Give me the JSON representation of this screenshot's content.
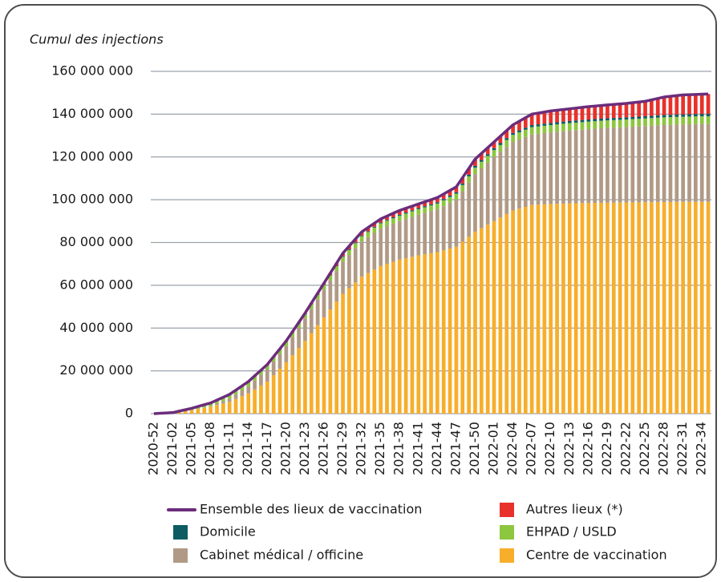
{
  "chart_data": {
    "type": "bar",
    "stacked": true,
    "title": "Cumul des injections",
    "categories": [
      "2020-52",
      null,
      null,
      "2021-02",
      null,
      null,
      "2021-05",
      null,
      null,
      "2021-08",
      null,
      null,
      "2021-11",
      null,
      null,
      "2021-14",
      null,
      null,
      "2021-17",
      null,
      null,
      "2021-20",
      null,
      null,
      "2021-23",
      null,
      null,
      "2021-26",
      null,
      null,
      "2021-29",
      null,
      null,
      "2021-32",
      null,
      null,
      "2021-35",
      null,
      null,
      "2021-38",
      null,
      null,
      "2021-41",
      null,
      null,
      "2021-44",
      null,
      null,
      "2021-47",
      null,
      null,
      "2021-50",
      null,
      null,
      "2022-01",
      null,
      null,
      "2022-04",
      null,
      null,
      "2022-07",
      null,
      null,
      "2022-10",
      null,
      null,
      "2022-13",
      null,
      null,
      "2022-16",
      null,
      null,
      "2022-19",
      null,
      null,
      "2022-22",
      null,
      null,
      "2022-25",
      null,
      null,
      "2022-28",
      null,
      null,
      "2022-31",
      null,
      null,
      "2022-34",
      null
    ],
    "series": [
      {
        "name": "Centre de vaccination",
        "color": "#f7ae2b",
        "type": "bar",
        "values": [
          0,
          100000,
          200000,
          300000,
          730000,
          1170000,
          1600000,
          2170000,
          2730000,
          3300000,
          4030000,
          4770000,
          5500000,
          6830000,
          8170000,
          9500000,
          11330000,
          13170000,
          15000000,
          18000000,
          21000000,
          24000000,
          27330000,
          30670000,
          34000000,
          37670000,
          41330000,
          45000000,
          48670000,
          52330000,
          56000000,
          58670000,
          61330000,
          64000000,
          65670000,
          67330000,
          69000000,
          70000000,
          71000000,
          72000000,
          72670000,
          73330000,
          74000000,
          74500000,
          75000000,
          75500000,
          76330000,
          77170000,
          78000000,
          80330000,
          82670000,
          85000000,
          86670000,
          88330000,
          90000000,
          91670000,
          93330000,
          95000000,
          95830000,
          96670000,
          97500000,
          97670000,
          97830000,
          98000000,
          98100000,
          98200000,
          98300000,
          98370000,
          98430000,
          98500000,
          98530000,
          98570000,
          98600000,
          98630000,
          98670000,
          98700000,
          98730000,
          98770000,
          98800000,
          98830000,
          98870000,
          98900000,
          98930000,
          98970000,
          99000000,
          99000000,
          99000000,
          99000000,
          99000000
        ]
      },
      {
        "name": "Cabinet médical / officine",
        "color": "#b09a86",
        "type": "bar",
        "values": [
          0,
          0,
          0,
          0,
          0,
          0,
          0,
          70000,
          130000,
          200000,
          630000,
          1070000,
          1500000,
          2100000,
          2700000,
          3300000,
          4130000,
          4970000,
          5800000,
          6370000,
          6930000,
          7500000,
          8500000,
          9500000,
          10500000,
          11330000,
          12170000,
          13000000,
          13670000,
          14330000,
          15000000,
          15500000,
          16000000,
          16500000,
          16830000,
          17170000,
          17500000,
          17670000,
          17830000,
          18000000,
          18330000,
          18670000,
          19000000,
          19330000,
          19670000,
          20000000,
          20670000,
          21330000,
          22000000,
          23670000,
          25330000,
          27000000,
          28000000,
          29000000,
          30000000,
          30670000,
          31330000,
          32000000,
          32330000,
          32670000,
          33000000,
          33170000,
          33330000,
          33500000,
          33670000,
          33830000,
          34000000,
          34170000,
          34330000,
          34500000,
          34670000,
          34830000,
          35000000,
          35100000,
          35200000,
          35300000,
          35400000,
          35500000,
          35600000,
          35730000,
          35870000,
          36000000,
          36070000,
          36130000,
          36200000,
          36270000,
          36330000,
          36400000,
          36400000
        ]
      },
      {
        "name": "EHPAD / USLD",
        "color": "#8dc63f",
        "type": "bar",
        "values": [
          0,
          70000,
          130000,
          200000,
          400000,
          600000,
          800000,
          970000,
          1130000,
          1300000,
          1400000,
          1500000,
          1600000,
          1670000,
          1730000,
          1800000,
          1800000,
          1800000,
          1800000,
          1870000,
          1930000,
          2000000,
          2000000,
          2000000,
          2000000,
          2070000,
          2130000,
          2200000,
          2230000,
          2270000,
          2300000,
          2330000,
          2370000,
          2400000,
          2430000,
          2470000,
          2500000,
          2500000,
          2500000,
          2500000,
          2530000,
          2570000,
          2600000,
          2630000,
          2670000,
          2700000,
          2730000,
          2770000,
          2800000,
          2870000,
          2930000,
          3000000,
          3070000,
          3130000,
          3200000,
          3230000,
          3270000,
          3300000,
          3330000,
          3370000,
          3400000,
          3400000,
          3400000,
          3400000,
          3430000,
          3470000,
          3500000,
          3500000,
          3500000,
          3500000,
          3500000,
          3500000,
          3500000,
          3500000,
          3500000,
          3500000,
          3530000,
          3570000,
          3600000,
          3600000,
          3600000,
          3600000,
          3600000,
          3600000,
          3600000,
          3600000,
          3600000,
          3600000,
          3600000
        ]
      },
      {
        "name": "Domicile",
        "color": "#0d5c63",
        "type": "bar",
        "values": [
          0,
          0,
          0,
          0,
          0,
          0,
          0,
          0,
          0,
          0,
          30000,
          70000,
          100000,
          100000,
          100000,
          100000,
          100000,
          100000,
          100000,
          100000,
          100000,
          100000,
          130000,
          170000,
          200000,
          200000,
          200000,
          200000,
          230000,
          270000,
          300000,
          330000,
          370000,
          400000,
          400000,
          400000,
          400000,
          430000,
          470000,
          500000,
          500000,
          500000,
          500000,
          530000,
          570000,
          600000,
          630000,
          670000,
          700000,
          730000,
          770000,
          800000,
          830000,
          870000,
          900000,
          900000,
          900000,
          900000,
          930000,
          970000,
          1000000,
          1000000,
          1000000,
          1000000,
          1000000,
          1000000,
          1000000,
          1000000,
          1000000,
          1000000,
          1000000,
          1000000,
          1000000,
          1000000,
          1000000,
          1000000,
          1000000,
          1000000,
          1000000,
          1030000,
          1070000,
          1100000,
          1100000,
          1100000,
          1100000,
          1100000,
          1100000,
          1100000,
          1100000
        ]
      },
      {
        "name": "Autres lieux (*)",
        "color": "#e8312b",
        "type": "bar",
        "values": [
          0,
          0,
          0,
          0,
          30000,
          70000,
          100000,
          130000,
          170000,
          200000,
          230000,
          270000,
          300000,
          300000,
          300000,
          300000,
          300000,
          300000,
          300000,
          330000,
          370000,
          400000,
          370000,
          330000,
          300000,
          400000,
          500000,
          600000,
          870000,
          1130000,
          1400000,
          1500000,
          1600000,
          1700000,
          1670000,
          1630000,
          1600000,
          1730000,
          1870000,
          2000000,
          1970000,
          1930000,
          1900000,
          2000000,
          2100000,
          2200000,
          2300000,
          2400000,
          2500000,
          2730000,
          2970000,
          3200000,
          3100000,
          3000000,
          2900000,
          3200000,
          3500000,
          3800000,
          4230000,
          4670000,
          5100000,
          5270000,
          5430000,
          5600000,
          5630000,
          5670000,
          5700000,
          5800000,
          5900000,
          6000000,
          6070000,
          6130000,
          6200000,
          6300000,
          6400000,
          6500000,
          6670000,
          6830000,
          7000000,
          7470000,
          7930000,
          8400000,
          8630000,
          8870000,
          9100000,
          9130000,
          9170000,
          9200000,
          9300000
        ]
      },
      {
        "name": "Ensemble des lieux de vaccination",
        "color": "#6b2d7b",
        "type": "line",
        "values": [
          0,
          170000,
          330000,
          500000,
          1170000,
          1830000,
          2500000,
          3330000,
          4170000,
          5000000,
          6330000,
          7670000,
          9000000,
          11000000,
          13000000,
          15000000,
          17670000,
          20330000,
          23000000,
          26670000,
          30330000,
          34000000,
          38330000,
          42670000,
          47000000,
          51670000,
          56330000,
          61000000,
          65670000,
          70330000,
          75000000,
          78330000,
          81670000,
          85000000,
          87000000,
          89000000,
          91000000,
          92330000,
          93670000,
          95000000,
          96000000,
          97000000,
          98000000,
          99000000,
          100000000,
          101000000,
          102670000,
          104330000,
          106000000,
          110330000,
          114670000,
          119000000,
          121670000,
          124330000,
          127000000,
          129670000,
          132330000,
          135000000,
          136670000,
          138330000,
          140000000,
          140500000,
          141000000,
          141500000,
          141830000,
          142170000,
          142500000,
          142830000,
          143170000,
          143500000,
          143770000,
          144030000,
          144300000,
          144530000,
          144770000,
          145000000,
          145330000,
          145670000,
          146000000,
          146670000,
          147330000,
          148000000,
          148330000,
          148670000,
          149000000,
          149100000,
          149200000,
          149300000,
          149400000
        ]
      }
    ],
    "ylim": [
      0,
      160000000
    ],
    "yticks": [
      0,
      {
        "value": 20000000,
        "label": "20 000 000"
      },
      {
        "value": 40000000,
        "label": "40 000 000"
      },
      {
        "value": 60000000,
        "label": "60 000 000"
      },
      {
        "value": 80000000,
        "label": "80 000 000"
      },
      {
        "value": 100000000,
        "label": "100 000 000"
      },
      {
        "value": 120000000,
        "label": "120 000 000"
      },
      {
        "value": 140000000,
        "label": "140 000 000"
      },
      {
        "value": 160000000,
        "label": "160 000 000"
      }
    ],
    "grid": true,
    "legend": "bottom"
  }
}
